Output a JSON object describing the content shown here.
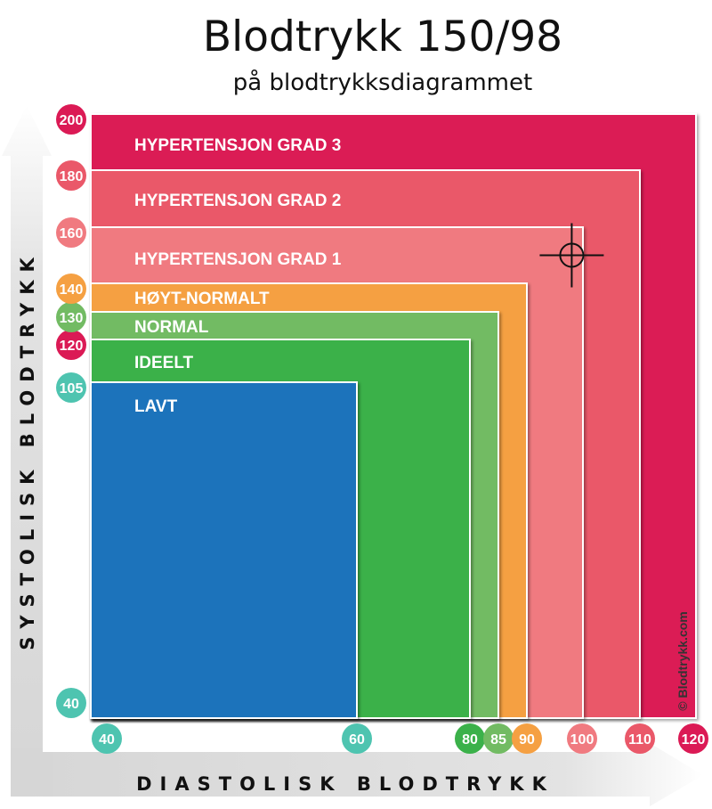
{
  "chart_data": {
    "type": "area",
    "title": "Blodtrykk 150/98",
    "subtitle": "på blodtrykksdiagrammet",
    "xlabel": "DIASTOLISK BLODTRYKK",
    "ylabel": "SYSTOLISK BLODTRYKK",
    "xticks": [
      40,
      60,
      80,
      85,
      90,
      100,
      110,
      120
    ],
    "yticks": [
      40,
      105,
      120,
      130,
      140,
      160,
      180,
      200
    ],
    "zones": [
      {
        "label": "HYPERTENSJON GRAD 3",
        "max_diastolic": 120,
        "max_systolic": 200,
        "color": "#db1a55"
      },
      {
        "label": "HYPERTENSJON GRAD 2",
        "max_diastolic": 110,
        "max_systolic": 180,
        "color": "#ea5869"
      },
      {
        "label": "HYPERTENSJON GRAD 1",
        "max_diastolic": 100,
        "max_systolic": 160,
        "color": "#f07a80"
      },
      {
        "label": "HØYT-NORMALT",
        "max_diastolic": 90,
        "max_systolic": 140,
        "color": "#f5a042"
      },
      {
        "label": "NORMAL",
        "max_diastolic": 85,
        "max_systolic": 130,
        "color": "#72bb63"
      },
      {
        "label": "IDEELT",
        "max_diastolic": 80,
        "max_systolic": 120,
        "color": "#3bb14a"
      },
      {
        "label": "LAVT",
        "max_diastolic": 60,
        "max_systolic": 105,
        "color": "#1e73bb"
      }
    ],
    "marker": {
      "diastolic": 98,
      "systolic": 150
    },
    "tick_colors": {
      "40": "#4ec4b0",
      "60": "#4ec4b0",
      "80": "#3bb14a",
      "85": "#72bb63",
      "90": "#f5a042",
      "100": "#f07a80",
      "110": "#ea5869",
      "120": "#db1a55",
      "105": "#4ec4b0",
      "130": "#72bb63",
      "140": "#f5a042",
      "160": "#f07a80",
      "180": "#ea5869",
      "200": "#db1a55"
    },
    "copyright": "© Blodtrykk.com"
  }
}
